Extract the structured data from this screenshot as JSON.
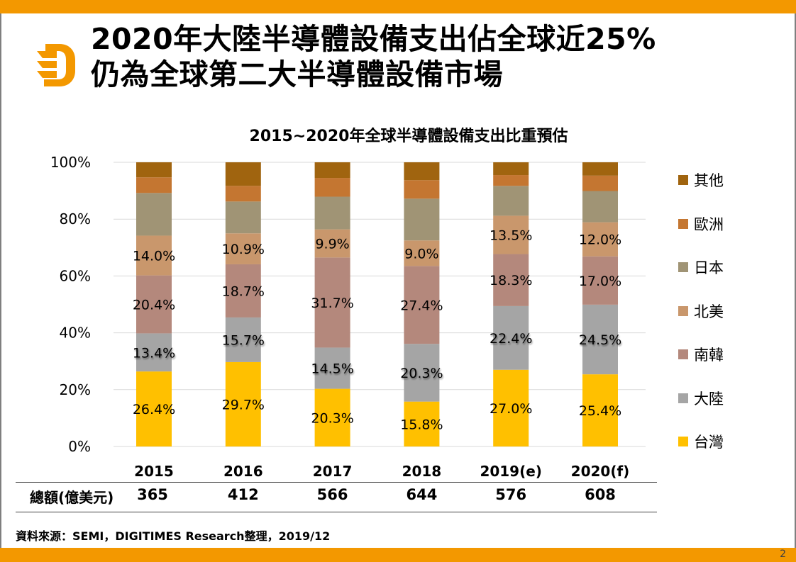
{
  "slide": {
    "title_line1": "2020年大陸半導體設備支出佔全球近25%",
    "title_line2": "仍為全球第二大半導體設備市場",
    "page_number": "2",
    "logo_icon": "digitimes-d-logo-icon",
    "brand_color": "#F39800"
  },
  "chart_data": {
    "type": "bar",
    "stacked": true,
    "percent_stacked": true,
    "title": "2015~2020年全球半導體設備支出比重預估",
    "xlabel": "",
    "ylabel": "",
    "ylim": [
      0,
      100
    ],
    "y_ticks": [
      "0%",
      "20%",
      "40%",
      "60%",
      "80%",
      "100%"
    ],
    "grid": true,
    "legend_position": "right",
    "categories": [
      "2015",
      "2016",
      "2017",
      "2018",
      "2019(e)",
      "2020(f)"
    ],
    "series": [
      {
        "name": "台灣",
        "color": "#FFC000",
        "values": [
          26.4,
          29.7,
          20.3,
          15.8,
          27.0,
          25.4
        ],
        "labeled": true
      },
      {
        "name": "大陸",
        "color": "#A5A5A5",
        "values": [
          13.4,
          15.7,
          14.5,
          20.3,
          22.4,
          24.5
        ],
        "labeled": true,
        "label_shadow": true
      },
      {
        "name": "南韓",
        "color": "#B4887C",
        "values": [
          20.4,
          18.7,
          31.7,
          27.4,
          18.3,
          17.0
        ],
        "labeled": true
      },
      {
        "name": "北美",
        "color": "#C9976C",
        "values": [
          14.0,
          10.9,
          9.9,
          9.0,
          13.5,
          12.0
        ],
        "labeled": true
      },
      {
        "name": "日本",
        "color": "#A09475",
        "values": [
          15.0,
          11.2,
          11.5,
          14.7,
          10.5,
          11.0
        ],
        "labeled": false
      },
      {
        "name": "歐洲",
        "color": "#C47631",
        "values": [
          5.5,
          5.5,
          6.6,
          6.5,
          3.8,
          5.4
        ],
        "labeled": false
      },
      {
        "name": "其他",
        "color": "#A0640F",
        "values": [
          5.3,
          8.3,
          5.5,
          6.3,
          4.5,
          4.7
        ],
        "labeled": false
      }
    ],
    "legend": [
      "其他",
      "歐洲",
      "日本",
      "北美",
      "南韓",
      "大陸",
      "台灣"
    ]
  },
  "totals": {
    "label": "總額(億美元)",
    "values": [
      "365",
      "412",
      "566",
      "644",
      "576",
      "608"
    ]
  },
  "source": "資料來源：SEMI，DIGITIMES Research整理，2019/12"
}
